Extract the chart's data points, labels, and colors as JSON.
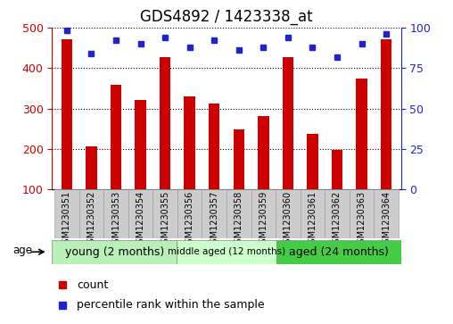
{
  "title": "GDS4892 / 1423338_at",
  "samples": [
    "GSM1230351",
    "GSM1230352",
    "GSM1230353",
    "GSM1230354",
    "GSM1230355",
    "GSM1230356",
    "GSM1230357",
    "GSM1230358",
    "GSM1230359",
    "GSM1230360",
    "GSM1230361",
    "GSM1230362",
    "GSM1230363",
    "GSM1230364"
  ],
  "counts": [
    470,
    207,
    358,
    321,
    428,
    330,
    312,
    248,
    282,
    428,
    238,
    197,
    375,
    472
  ],
  "percentiles": [
    98,
    84,
    92,
    90,
    94,
    88,
    92,
    86,
    88,
    94,
    88,
    82,
    90,
    96
  ],
  "bar_color": "#cc0000",
  "dot_color": "#2222cc",
  "ylim_left": [
    100,
    500
  ],
  "ylim_right": [
    0,
    100
  ],
  "yticks_left": [
    100,
    200,
    300,
    400,
    500
  ],
  "yticks_right": [
    0,
    25,
    50,
    75,
    100
  ],
  "groups": [
    {
      "label": "young (2 months)",
      "start": 0,
      "end": 5,
      "color": "#b8f0b8",
      "fontsize": 9
    },
    {
      "label": "middle aged (12 months)",
      "start": 5,
      "end": 9,
      "color": "#ccffcc",
      "fontsize": 7.5
    },
    {
      "label": "aged (24 months)",
      "start": 9,
      "end": 14,
      "color": "#44cc44",
      "fontsize": 9
    }
  ],
  "legend_count_label": "count",
  "legend_pct_label": "percentile rank within the sample",
  "age_label": "age",
  "grid_color": "#000000",
  "title_fontsize": 12,
  "tick_fontsize": 9,
  "xlabel_bg": "#cccccc",
  "bar_width": 0.45
}
